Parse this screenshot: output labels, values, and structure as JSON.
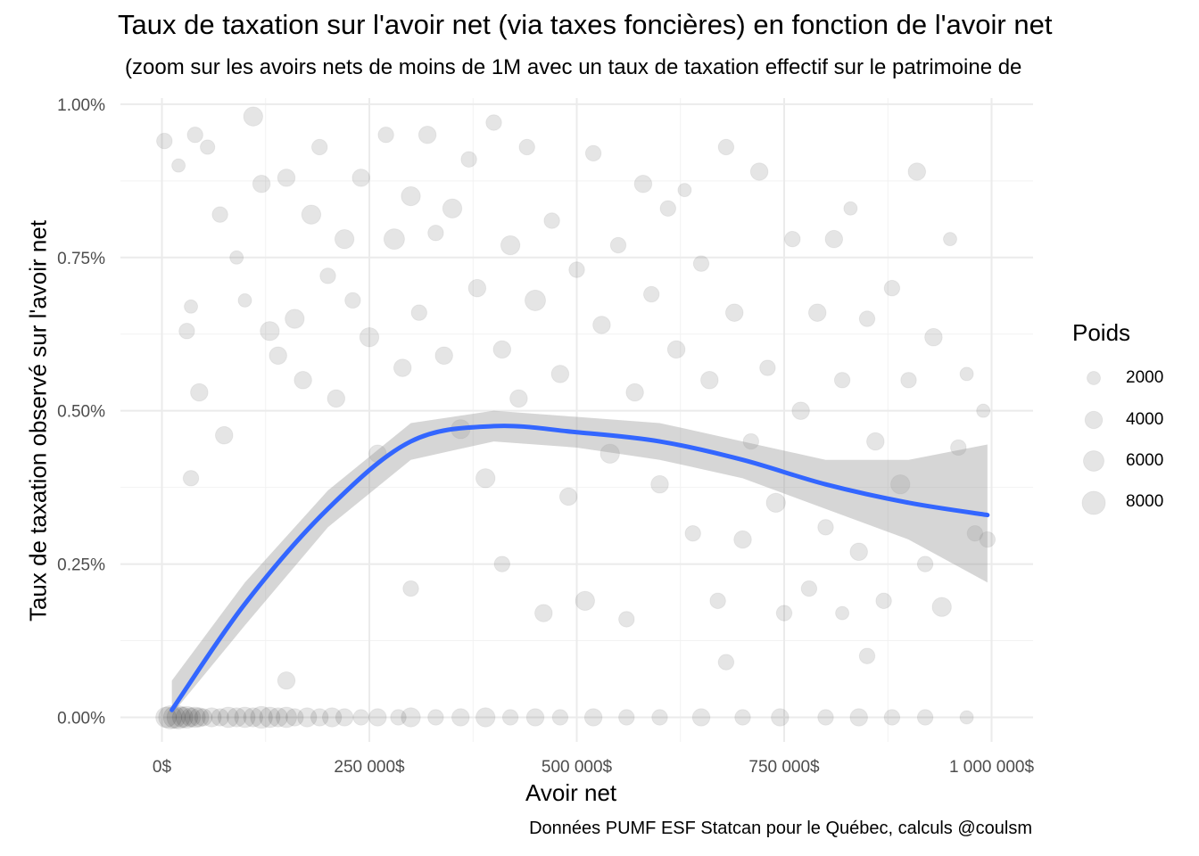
{
  "title": "Taux de taxation sur l'avoir net (via taxes foncières) en fonction de l'avoir net",
  "subtitle": "(zoom sur les avoirs nets de moins de 1M avec un taux de taxation effectif sur le patrimoine de",
  "caption": "Données PUMF ESF Statcan pour le Québec, calculs @coulsm",
  "chart_data": {
    "type": "scatter",
    "title": "Taux de taxation sur l'avoir net (via taxes foncières) en fonction de l'avoir net",
    "xlabel": "Avoir net",
    "ylabel": "Taux de taxation observé sur l'avoir net",
    "xlim": [
      -50000,
      1050000
    ],
    "ylim": [
      -0.0004,
      0.0101
    ],
    "x_ticks": [
      0,
      250000,
      500000,
      750000,
      1000000
    ],
    "x_tick_labels": [
      "0$",
      "250 000$",
      "500 000$",
      "750 000$",
      "1 000 000$"
    ],
    "y_ticks": [
      0,
      0.0025,
      0.005,
      0.0075,
      0.01
    ],
    "y_tick_labels": [
      "0.00%",
      "0.25%",
      "0.50%",
      "0.75%",
      "1.00%"
    ],
    "grid": true,
    "legend": {
      "title": "Poids",
      "placement": "right",
      "entries": [
        {
          "label": "2000",
          "value": 2000
        },
        {
          "label": "4000",
          "value": 4000
        },
        {
          "label": "6000",
          "value": 6000
        },
        {
          "label": "8000",
          "value": 8000
        }
      ]
    },
    "points_alpha": 0.1,
    "points_color": "#000000",
    "smooth_color": "#3366FF",
    "ribbon_color": "#999999",
    "smooth_fit": [
      {
        "x": 12000,
        "y": 0.00012,
        "lo": 5e-05,
        "hi": 0.0006
      },
      {
        "x": 100000,
        "y": 0.00185,
        "lo": 0.0015,
        "hi": 0.0022
      },
      {
        "x": 200000,
        "y": 0.0034,
        "lo": 0.0031,
        "hi": 0.0037
      },
      {
        "x": 300000,
        "y": 0.0045,
        "lo": 0.0042,
        "hi": 0.0048
      },
      {
        "x": 400000,
        "y": 0.00475,
        "lo": 0.0045,
        "hi": 0.005
      },
      {
        "x": 500000,
        "y": 0.00465,
        "lo": 0.0044,
        "hi": 0.0049
      },
      {
        "x": 600000,
        "y": 0.0045,
        "lo": 0.0042,
        "hi": 0.0048
      },
      {
        "x": 700000,
        "y": 0.0042,
        "lo": 0.0039,
        "hi": 0.0045
      },
      {
        "x": 800000,
        "y": 0.0038,
        "lo": 0.0034,
        "hi": 0.0042
      },
      {
        "x": 900000,
        "y": 0.0035,
        "lo": 0.0029,
        "hi": 0.0042
      },
      {
        "x": 995000,
        "y": 0.0033,
        "lo": 0.0022,
        "hi": 0.00445
      }
    ],
    "points": [
      {
        "x": 5000,
        "y": 0.0,
        "w": 6000
      },
      {
        "x": 10000,
        "y": 0.0,
        "w": 8000
      },
      {
        "x": 15000,
        "y": 0.0,
        "w": 7000
      },
      {
        "x": 20000,
        "y": 0.0,
        "w": 8000
      },
      {
        "x": 25000,
        "y": 0.0,
        "w": 6000
      },
      {
        "x": 30000,
        "y": 0.0,
        "w": 7000
      },
      {
        "x": 35000,
        "y": 0.0,
        "w": 5000
      },
      {
        "x": 40000,
        "y": 0.0,
        "w": 6000
      },
      {
        "x": 45000,
        "y": 0.0,
        "w": 5000
      },
      {
        "x": 50000,
        "y": 0.0,
        "w": 4000
      },
      {
        "x": 60000,
        "y": 0.0,
        "w": 5000
      },
      {
        "x": 70000,
        "y": 0.0,
        "w": 4000
      },
      {
        "x": 80000,
        "y": 0.0,
        "w": 6000
      },
      {
        "x": 90000,
        "y": 0.0,
        "w": 5000
      },
      {
        "x": 100000,
        "y": 0.0,
        "w": 6000
      },
      {
        "x": 110000,
        "y": 0.0,
        "w": 5000
      },
      {
        "x": 120000,
        "y": 0.0,
        "w": 7000
      },
      {
        "x": 130000,
        "y": 0.0,
        "w": 6000
      },
      {
        "x": 140000,
        "y": 0.0,
        "w": 5000
      },
      {
        "x": 150000,
        "y": 0.0,
        "w": 6000
      },
      {
        "x": 160000,
        "y": 0.0,
        "w": 4000
      },
      {
        "x": 175000,
        "y": 0.0,
        "w": 5000
      },
      {
        "x": 190000,
        "y": 0.0,
        "w": 4000
      },
      {
        "x": 205000,
        "y": 0.0,
        "w": 5000
      },
      {
        "x": 220000,
        "y": 0.0,
        "w": 4000
      },
      {
        "x": 240000,
        "y": 0.0,
        "w": 3000
      },
      {
        "x": 260000,
        "y": 0.0,
        "w": 4000
      },
      {
        "x": 285000,
        "y": 0.0,
        "w": 3000
      },
      {
        "x": 300000,
        "y": 0.0,
        "w": 5000
      },
      {
        "x": 330000,
        "y": 0.0,
        "w": 3000
      },
      {
        "x": 360000,
        "y": 0.0,
        "w": 4000
      },
      {
        "x": 390000,
        "y": 0.0,
        "w": 5000
      },
      {
        "x": 420000,
        "y": 0.0,
        "w": 3000
      },
      {
        "x": 450000,
        "y": 0.0,
        "w": 4000
      },
      {
        "x": 480000,
        "y": 0.0,
        "w": 3000
      },
      {
        "x": 520000,
        "y": 0.0,
        "w": 4000
      },
      {
        "x": 560000,
        "y": 0.0,
        "w": 3000
      },
      {
        "x": 600000,
        "y": 0.0,
        "w": 3000
      },
      {
        "x": 650000,
        "y": 0.0,
        "w": 4000
      },
      {
        "x": 700000,
        "y": 0.0,
        "w": 3000
      },
      {
        "x": 745000,
        "y": 0.0,
        "w": 4000
      },
      {
        "x": 800000,
        "y": 0.0,
        "w": 3000
      },
      {
        "x": 840000,
        "y": 0.0,
        "w": 4000
      },
      {
        "x": 880000,
        "y": 0.0,
        "w": 3000
      },
      {
        "x": 920000,
        "y": 0.0,
        "w": 3000
      },
      {
        "x": 970000,
        "y": 0.0,
        "w": 2000
      },
      {
        "x": 3000,
        "y": 0.0094,
        "w": 3000
      },
      {
        "x": 20000,
        "y": 0.009,
        "w": 2000
      },
      {
        "x": 40000,
        "y": 0.0095,
        "w": 3000
      },
      {
        "x": 30000,
        "y": 0.0063,
        "w": 3000
      },
      {
        "x": 35000,
        "y": 0.0067,
        "w": 2000
      },
      {
        "x": 35000,
        "y": 0.0039,
        "w": 3000
      },
      {
        "x": 45000,
        "y": 0.0053,
        "w": 4000
      },
      {
        "x": 55000,
        "y": 0.0093,
        "w": 2500
      },
      {
        "x": 70000,
        "y": 0.0082,
        "w": 3000
      },
      {
        "x": 75000,
        "y": 0.0046,
        "w": 4000
      },
      {
        "x": 90000,
        "y": 0.0075,
        "w": 2000
      },
      {
        "x": 100000,
        "y": 0.0068,
        "w": 2000
      },
      {
        "x": 110000,
        "y": 0.0098,
        "w": 5000
      },
      {
        "x": 120000,
        "y": 0.0087,
        "w": 4000
      },
      {
        "x": 130000,
        "y": 0.0063,
        "w": 5000
      },
      {
        "x": 140000,
        "y": 0.0059,
        "w": 4000
      },
      {
        "x": 150000,
        "y": 0.0088,
        "w": 4000
      },
      {
        "x": 160000,
        "y": 0.0065,
        "w": 5000
      },
      {
        "x": 170000,
        "y": 0.0055,
        "w": 4000
      },
      {
        "x": 180000,
        "y": 0.0082,
        "w": 5000
      },
      {
        "x": 190000,
        "y": 0.0093,
        "w": 3000
      },
      {
        "x": 200000,
        "y": 0.0072,
        "w": 3000
      },
      {
        "x": 210000,
        "y": 0.0052,
        "w": 4000
      },
      {
        "x": 220000,
        "y": 0.0078,
        "w": 5000
      },
      {
        "x": 230000,
        "y": 0.0068,
        "w": 3000
      },
      {
        "x": 240000,
        "y": 0.0088,
        "w": 4000
      },
      {
        "x": 250000,
        "y": 0.0062,
        "w": 5000
      },
      {
        "x": 260000,
        "y": 0.0043,
        "w": 4000
      },
      {
        "x": 270000,
        "y": 0.0095,
        "w": 3000
      },
      {
        "x": 280000,
        "y": 0.0078,
        "w": 6000
      },
      {
        "x": 290000,
        "y": 0.0057,
        "w": 4000
      },
      {
        "x": 300000,
        "y": 0.0085,
        "w": 5000
      },
      {
        "x": 310000,
        "y": 0.0066,
        "w": 3000
      },
      {
        "x": 320000,
        "y": 0.0095,
        "w": 4000
      },
      {
        "x": 330000,
        "y": 0.0079,
        "w": 3000
      },
      {
        "x": 340000,
        "y": 0.0059,
        "w": 4000
      },
      {
        "x": 350000,
        "y": 0.0083,
        "w": 5000
      },
      {
        "x": 360000,
        "y": 0.0047,
        "w": 5000
      },
      {
        "x": 370000,
        "y": 0.0091,
        "w": 3000
      },
      {
        "x": 380000,
        "y": 0.007,
        "w": 4000
      },
      {
        "x": 390000,
        "y": 0.0039,
        "w": 5000
      },
      {
        "x": 400000,
        "y": 0.0097,
        "w": 3000
      },
      {
        "x": 410000,
        "y": 0.006,
        "w": 4000
      },
      {
        "x": 420000,
        "y": 0.0077,
        "w": 5000
      },
      {
        "x": 430000,
        "y": 0.0052,
        "w": 4000
      },
      {
        "x": 440000,
        "y": 0.0093,
        "w": 3000
      },
      {
        "x": 450000,
        "y": 0.0068,
        "w": 6000
      },
      {
        "x": 460000,
        "y": 0.0017,
        "w": 4000
      },
      {
        "x": 470000,
        "y": 0.0081,
        "w": 3000
      },
      {
        "x": 480000,
        "y": 0.0056,
        "w": 4000
      },
      {
        "x": 490000,
        "y": 0.0036,
        "w": 4000
      },
      {
        "x": 500000,
        "y": 0.0073,
        "w": 3000
      },
      {
        "x": 510000,
        "y": 0.0019,
        "w": 5000
      },
      {
        "x": 520000,
        "y": 0.0092,
        "w": 3000
      },
      {
        "x": 530000,
        "y": 0.0064,
        "w": 4000
      },
      {
        "x": 540000,
        "y": 0.0043,
        "w": 5000
      },
      {
        "x": 550000,
        "y": 0.0077,
        "w": 3000
      },
      {
        "x": 560000,
        "y": 0.0016,
        "w": 3000
      },
      {
        "x": 570000,
        "y": 0.0053,
        "w": 4000
      },
      {
        "x": 580000,
        "y": 0.0087,
        "w": 4000
      },
      {
        "x": 590000,
        "y": 0.0069,
        "w": 3000
      },
      {
        "x": 600000,
        "y": 0.0038,
        "w": 4000
      },
      {
        "x": 610000,
        "y": 0.0083,
        "w": 3000
      },
      {
        "x": 620000,
        "y": 0.006,
        "w": 4000
      },
      {
        "x": 630000,
        "y": 0.0086,
        "w": 2000
      },
      {
        "x": 640000,
        "y": 0.003,
        "w": 3000
      },
      {
        "x": 650000,
        "y": 0.0074,
        "w": 3000
      },
      {
        "x": 660000,
        "y": 0.0055,
        "w": 4000
      },
      {
        "x": 670000,
        "y": 0.0019,
        "w": 3000
      },
      {
        "x": 680000,
        "y": 0.0093,
        "w": 3000
      },
      {
        "x": 690000,
        "y": 0.0066,
        "w": 4000
      },
      {
        "x": 700000,
        "y": 0.0029,
        "w": 4000
      },
      {
        "x": 710000,
        "y": 0.0045,
        "w": 3000
      },
      {
        "x": 720000,
        "y": 0.0089,
        "w": 4000
      },
      {
        "x": 730000,
        "y": 0.0057,
        "w": 3000
      },
      {
        "x": 740000,
        "y": 0.0035,
        "w": 5000
      },
      {
        "x": 750000,
        "y": 0.0017,
        "w": 3000
      },
      {
        "x": 760000,
        "y": 0.0078,
        "w": 3000
      },
      {
        "x": 770000,
        "y": 0.005,
        "w": 4000
      },
      {
        "x": 780000,
        "y": 0.0021,
        "w": 3000
      },
      {
        "x": 790000,
        "y": 0.0066,
        "w": 4000
      },
      {
        "x": 800000,
        "y": 0.0031,
        "w": 3000
      },
      {
        "x": 810000,
        "y": 0.0078,
        "w": 4000
      },
      {
        "x": 820000,
        "y": 0.0055,
        "w": 3000
      },
      {
        "x": 830000,
        "y": 0.0083,
        "w": 2000
      },
      {
        "x": 840000,
        "y": 0.0027,
        "w": 4000
      },
      {
        "x": 850000,
        "y": 0.0065,
        "w": 3000
      },
      {
        "x": 860000,
        "y": 0.0045,
        "w": 4000
      },
      {
        "x": 870000,
        "y": 0.0019,
        "w": 3000
      },
      {
        "x": 880000,
        "y": 0.007,
        "w": 3000
      },
      {
        "x": 890000,
        "y": 0.0038,
        "w": 5000
      },
      {
        "x": 900000,
        "y": 0.0055,
        "w": 3000
      },
      {
        "x": 910000,
        "y": 0.0089,
        "w": 4000
      },
      {
        "x": 920000,
        "y": 0.0025,
        "w": 3000
      },
      {
        "x": 930000,
        "y": 0.0062,
        "w": 4000
      },
      {
        "x": 940000,
        "y": 0.0018,
        "w": 5000
      },
      {
        "x": 950000,
        "y": 0.0078,
        "w": 2000
      },
      {
        "x": 960000,
        "y": 0.0044,
        "w": 3000
      },
      {
        "x": 970000,
        "y": 0.0056,
        "w": 2000
      },
      {
        "x": 980000,
        "y": 0.003,
        "w": 3000
      },
      {
        "x": 990000,
        "y": 0.005,
        "w": 2000
      },
      {
        "x": 995000,
        "y": 0.0029,
        "w": 3000
      },
      {
        "x": 150000,
        "y": 0.0006,
        "w": 4000
      },
      {
        "x": 300000,
        "y": 0.0021,
        "w": 3000
      },
      {
        "x": 410000,
        "y": 0.0025,
        "w": 3000
      },
      {
        "x": 680000,
        "y": 0.0009,
        "w": 3000
      },
      {
        "x": 820000,
        "y": 0.0017,
        "w": 2000
      },
      {
        "x": 850000,
        "y": 0.001,
        "w": 3000
      }
    ]
  }
}
